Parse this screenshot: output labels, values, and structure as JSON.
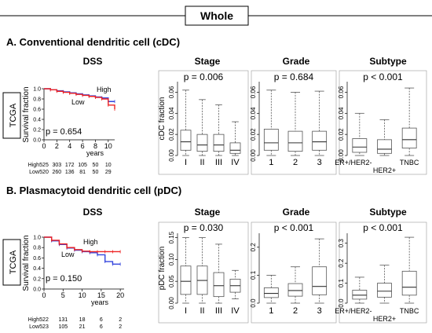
{
  "header": "Whole",
  "colors": {
    "high": "#3344dd",
    "low": "#ee2222",
    "box": "#555555",
    "grid": "#999999"
  },
  "chart_data": [
    {
      "section": "A. Conventional dendritic cell (cDC)",
      "dss": {
        "title": "DSS",
        "cohort": "TCGA",
        "ylabel": "Survival fraction",
        "xlabel": "years",
        "xticks": [
          "0",
          "2",
          "4",
          "6",
          "8",
          "10"
        ],
        "xlim": [
          0,
          11
        ],
        "yticks": [
          "0.0",
          "0.2",
          "0.4",
          "0.6",
          "0.8",
          "1.0"
        ],
        "ylim": [
          0,
          1
        ],
        "p": "p = 0.654",
        "series": [
          {
            "name": "High",
            "x": [
              0,
              1,
              2,
              3,
              4,
              5,
              6,
              7,
              8,
              9,
              10,
              11
            ],
            "y": [
              1.0,
              0.98,
              0.96,
              0.94,
              0.92,
              0.9,
              0.88,
              0.86,
              0.84,
              0.82,
              0.75,
              0.75
            ]
          },
          {
            "name": "Low",
            "x": [
              0,
              1,
              2,
              3,
              4,
              5,
              6,
              7,
              8,
              9,
              10,
              11
            ],
            "y": [
              1.0,
              0.98,
              0.95,
              0.93,
              0.91,
              0.89,
              0.87,
              0.85,
              0.83,
              0.8,
              0.68,
              0.6
            ]
          }
        ],
        "risk": [
          {
            "group": "High",
            "values": [
              "525",
              "303",
              "172",
              "105",
              "50",
              "10"
            ]
          },
          {
            "group": "Low",
            "values": [
              "520",
              "260",
              "136",
              "81",
              "50",
              "29"
            ]
          }
        ]
      },
      "boxes": {
        "ylabel": "cDC fraction",
        "ylim": [
          0,
          0.07
        ],
        "yticks": [
          "0.00",
          "0.02",
          "0.04",
          "0.06"
        ],
        "panels": [
          {
            "title": "Stage",
            "p": "p = 0.006",
            "categories": [
              "I",
              "II",
              "III",
              "IV"
            ],
            "stats": [
              [
                0,
                0.005,
                0.013,
                0.024,
                0.062
              ],
              [
                0,
                0.004,
                0.01,
                0.02,
                0.053
              ],
              [
                0,
                0.004,
                0.01,
                0.02,
                0.048
              ],
              [
                0,
                0.002,
                0.005,
                0.012,
                0.032
              ]
            ]
          },
          {
            "title": "Grade",
            "p": "p = 0.684",
            "categories": [
              "1",
              "2",
              "3"
            ],
            "stats": [
              [
                0,
                0.005,
                0.012,
                0.025,
                0.062
              ],
              [
                0,
                0.004,
                0.012,
                0.023,
                0.06
              ],
              [
                0,
                0.005,
                0.013,
                0.023,
                0.061
              ]
            ]
          },
          {
            "title": "Subtype",
            "p": "p < 0.001",
            "categories": [
              "ER+/HER2-",
              "HER2+",
              "TNBC"
            ],
            "stats": [
              [
                0,
                0.003,
                0.008,
                0.016,
                0.04
              ],
              [
                0,
                0.002,
                0.006,
                0.015,
                0.034
              ],
              [
                0,
                0.007,
                0.015,
                0.026,
                0.064
              ]
            ]
          }
        ]
      }
    },
    {
      "section": "B. Plasmacytoid dendritic cell (pDC)",
      "dss": {
        "title": "DSS",
        "cohort": "TCGA",
        "ylabel": "Survival fraction",
        "xlabel": "years",
        "xticks": [
          "0",
          "5",
          "10",
          "15",
          "20"
        ],
        "xlim": [
          0,
          21
        ],
        "yticks": [
          "0.0",
          "0.2",
          "0.4",
          "0.6",
          "0.8",
          "1.0"
        ],
        "ylim": [
          0,
          1
        ],
        "p": "p = 0.150",
        "series": [
          {
            "name": "High",
            "x": [
              0,
              2,
              4,
              6,
              8,
              10,
              12,
              14,
              16,
              18,
              20
            ],
            "y": [
              1.0,
              0.93,
              0.86,
              0.79,
              0.75,
              0.72,
              0.7,
              0.66,
              0.53,
              0.48,
              0.48
            ]
          },
          {
            "name": "Low",
            "x": [
              0,
              2,
              4,
              6,
              8,
              10,
              12,
              14,
              16,
              18,
              20
            ],
            "y": [
              1.0,
              0.94,
              0.87,
              0.8,
              0.76,
              0.73,
              0.72,
              0.72,
              0.72,
              0.72,
              0.72
            ]
          }
        ],
        "risk": [
          {
            "group": "High",
            "values": [
              "522",
              "131",
              "18",
              "6",
              "2"
            ]
          },
          {
            "group": "Low",
            "values": [
              "523",
              "105",
              "21",
              "6",
              "2"
            ]
          }
        ]
      },
      "boxes": {
        "ylabel": "pDC fraction",
        "panels": [
          {
            "title": "Stage",
            "p": "p = 0.030",
            "categories": [
              "I",
              "II",
              "III",
              "IV"
            ],
            "ylim": [
              0,
              0.16
            ],
            "yticks": [
              "0.00",
              "0.05",
              "0.10",
              "0.15"
            ],
            "stats": [
              [
                0,
                0.02,
                0.05,
                0.085,
                0.15
              ],
              [
                0,
                0.02,
                0.052,
                0.085,
                0.15
              ],
              [
                0,
                0.015,
                0.04,
                0.07,
                0.135
              ],
              [
                0.01,
                0.025,
                0.04,
                0.055,
                0.075
              ]
            ]
          },
          {
            "title": "Grade",
            "p": "p < 0.001",
            "categories": [
              "1",
              "2",
              "3"
            ],
            "ylim": [
              0,
              0.25
            ],
            "yticks": [
              "0.0",
              "0.1",
              "0.2"
            ],
            "stats": [
              [
                0,
                0.02,
                0.035,
                0.055,
                0.1
              ],
              [
                0,
                0.025,
                0.045,
                0.07,
                0.13
              ],
              [
                0,
                0.03,
                0.06,
                0.13,
                0.23
              ]
            ]
          },
          {
            "title": "Subtype",
            "p": "p < 0.001",
            "categories": [
              "ER+/HER2-",
              "HER2+",
              "TNBC"
            ],
            "ylim": [
              0,
              0.35
            ],
            "yticks": [
              "0.0",
              "0.1",
              "0.2",
              "0.3"
            ],
            "stats": [
              [
                0,
                0.02,
                0.04,
                0.065,
                0.13
              ],
              [
                0,
                0.03,
                0.06,
                0.1,
                0.19
              ],
              [
                0,
                0.04,
                0.08,
                0.16,
                0.33
              ]
            ]
          }
        ]
      }
    }
  ]
}
